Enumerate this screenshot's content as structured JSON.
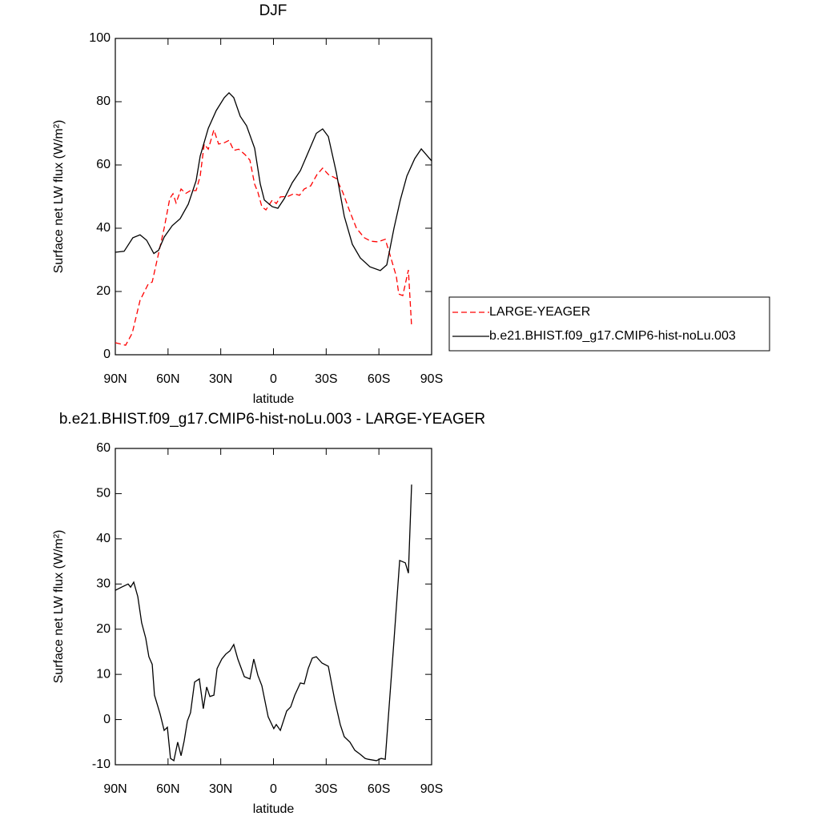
{
  "chart_data": [
    {
      "type": "line",
      "title": "DJF",
      "xlabel": "latitude",
      "ylabel": "Surface net LW flux (W/m²)",
      "xlim": [
        90,
        -90
      ],
      "ylim": [
        0,
        100
      ],
      "xticks": [
        {
          "value": 90,
          "label": "90N"
        },
        {
          "value": 60,
          "label": "60N"
        },
        {
          "value": 30,
          "label": "30N"
        },
        0,
        {
          "value": -30,
          "label": "30S"
        },
        {
          "value": -60,
          "label": "60S"
        },
        {
          "value": -90,
          "label": "90S"
        }
      ],
      "yticks": [
        0,
        20,
        40,
        60,
        80,
        100
      ],
      "legend": "right",
      "series": [
        {
          "name": "LARGE-YEAGER",
          "color": "#ff0000",
          "line_style": "dashed",
          "x": [
            90,
            84.1,
            80.4,
            75.9,
            71.3,
            69.0,
            65.8,
            62.2,
            59.0,
            57.2,
            55.4,
            52.6,
            49.9,
            47.2,
            44.0,
            41.7,
            39.4,
            37.1,
            33.9,
            31.2,
            28.0,
            25.3,
            22.6,
            19.8,
            16.2,
            13.4,
            10.7,
            8.9,
            6.6,
            4.3,
            0.7,
            -1.6,
            -3.9,
            -8.4,
            -11.6,
            -14.8,
            -17.5,
            -21.2,
            -24.8,
            -28.0,
            -31.2,
            -35.8,
            -39.4,
            -43.1,
            -47.2,
            -51.7,
            -55.4,
            -59.5,
            -63.6,
            -66.3,
            -69.9,
            -71.3,
            -73.6,
            -76.8,
            -78.6
          ],
          "values": [
            3.8,
            3,
            6.8,
            17.2,
            22.3,
            23,
            31,
            40,
            49.4,
            50.9,
            48,
            52.4,
            51,
            51.9,
            51.9,
            56.5,
            66.6,
            65,
            71.1,
            66.6,
            67,
            67.8,
            64.6,
            65,
            63.3,
            61.5,
            53.9,
            51.4,
            46.8,
            45.8,
            48.9,
            47.8,
            49.9,
            50.1,
            50.9,
            50.4,
            52.4,
            53.4,
            57,
            59,
            57,
            55.7,
            51.4,
            45.8,
            40,
            37,
            35.9,
            35.7,
            36.5,
            31.6,
            24.8,
            19.2,
            18.7,
            26.8,
            8.9
          ]
        },
        {
          "name": "b.e21.BHIST.f09_g17.CMIP6-hist-noLu.003",
          "color": "#000000",
          "line_style": "solid",
          "x": [
            90,
            85.0,
            80.0,
            75.9,
            72.2,
            68.1,
            65.4,
            62.2,
            57.6,
            53.1,
            48.5,
            44.0,
            41.7,
            37.1,
            32.6,
            28.0,
            25.3,
            22.6,
            18.9,
            15.3,
            10.7,
            7.5,
            5.2,
            0.7,
            -2.5,
            -6.2,
            -10.7,
            -15.3,
            -19.8,
            -24.4,
            -28.0,
            -31.2,
            -35.8,
            -40.3,
            -44.9,
            -49.4,
            -54.9,
            -60.8,
            -64.5,
            -68.6,
            -72.2,
            -75.9,
            -80.4,
            -84.1,
            -90
          ],
          "values": [
            32.4,
            32.7,
            37,
            37.9,
            36.2,
            32,
            33,
            37.2,
            40.8,
            43,
            47.6,
            55,
            62.8,
            71.6,
            77.2,
            81.3,
            82.8,
            81.3,
            75.4,
            72.4,
            65.3,
            54,
            48.9,
            46.8,
            46.3,
            49.4,
            54.4,
            58.2,
            64,
            70,
            71.4,
            69,
            57.5,
            43.8,
            34.9,
            30.6,
            27.8,
            26.6,
            28.4,
            40,
            48.9,
            56.5,
            62,
            65.1,
            61.3
          ]
        }
      ]
    },
    {
      "type": "line",
      "title": "b.e21.BHIST.f09_g17.CMIP6-hist-noLu.003 - LARGE-YEAGER",
      "xlabel": "latitude",
      "ylabel": "Surface net LW flux (W/m²)",
      "xlim": [
        90,
        -90
      ],
      "ylim": [
        -10,
        60
      ],
      "xticks": [
        {
          "value": 90,
          "label": "90N"
        },
        {
          "value": 60,
          "label": "60N"
        },
        {
          "value": 30,
          "label": "30N"
        },
        0,
        {
          "value": -30,
          "label": "30S"
        },
        {
          "value": -60,
          "label": "60S"
        },
        {
          "value": -90,
          "label": "90S"
        }
      ],
      "yticks": [
        -10,
        0,
        10,
        20,
        30,
        40,
        50,
        60
      ],
      "color": "#000000",
      "x": [
        90,
        86.4,
        82.7,
        81.3,
        79.5,
        77.2,
        75.0,
        72.7,
        70.9,
        69.0,
        67.7,
        64.5,
        62.2,
        60.4,
        58.6,
        56.7,
        54.5,
        52.6,
        50.8,
        49.0,
        47.2,
        44.9,
        42.2,
        39.9,
        38.0,
        36.2,
        33.9,
        32.1,
        29.4,
        27.1,
        24.8,
        22.6,
        20.3,
        16.6,
        13.4,
        11.2,
        8.9,
        6.6,
        3.0,
        -0.2,
        -1.6,
        -3.9,
        -7.5,
        -9.8,
        -12.1,
        -15.3,
        -17.5,
        -19.8,
        -22.1,
        -24.4,
        -27.6,
        -31.2,
        -34.9,
        -38.0,
        -40.3,
        -43.5,
        -46.3,
        -49.4,
        -52.2,
        -54.0,
        -58.6,
        -61.3,
        -63.6,
        -68.6,
        -71.8,
        -75.0,
        -76.8,
        -78.6
      ],
      "values": [
        28.6,
        29.3,
        30,
        29.3,
        30.4,
        27.2,
        21.4,
        18,
        13.9,
        12.2,
        5.4,
        1.2,
        -2.4,
        -1.7,
        -8.6,
        -9.1,
        -5,
        -8,
        -4.7,
        -0.3,
        1.5,
        8.3,
        9,
        2.4,
        7.2,
        5.1,
        5.4,
        11.3,
        13.4,
        14.5,
        15.2,
        16.6,
        13.4,
        9.5,
        9,
        13.4,
        9.8,
        7.5,
        0.6,
        -2,
        -1.1,
        -2.4,
        1.9,
        2.8,
        5.4,
        8.1,
        7.9,
        11.3,
        13.6,
        13.9,
        12.5,
        11.8,
        4.2,
        -1.1,
        -3.8,
        -5,
        -6.8,
        -7.7,
        -8.6,
        -8.8,
        -9.1,
        -8.6,
        -8.8,
        17.5,
        35.2,
        34.7,
        32.4,
        52
      ]
    }
  ]
}
